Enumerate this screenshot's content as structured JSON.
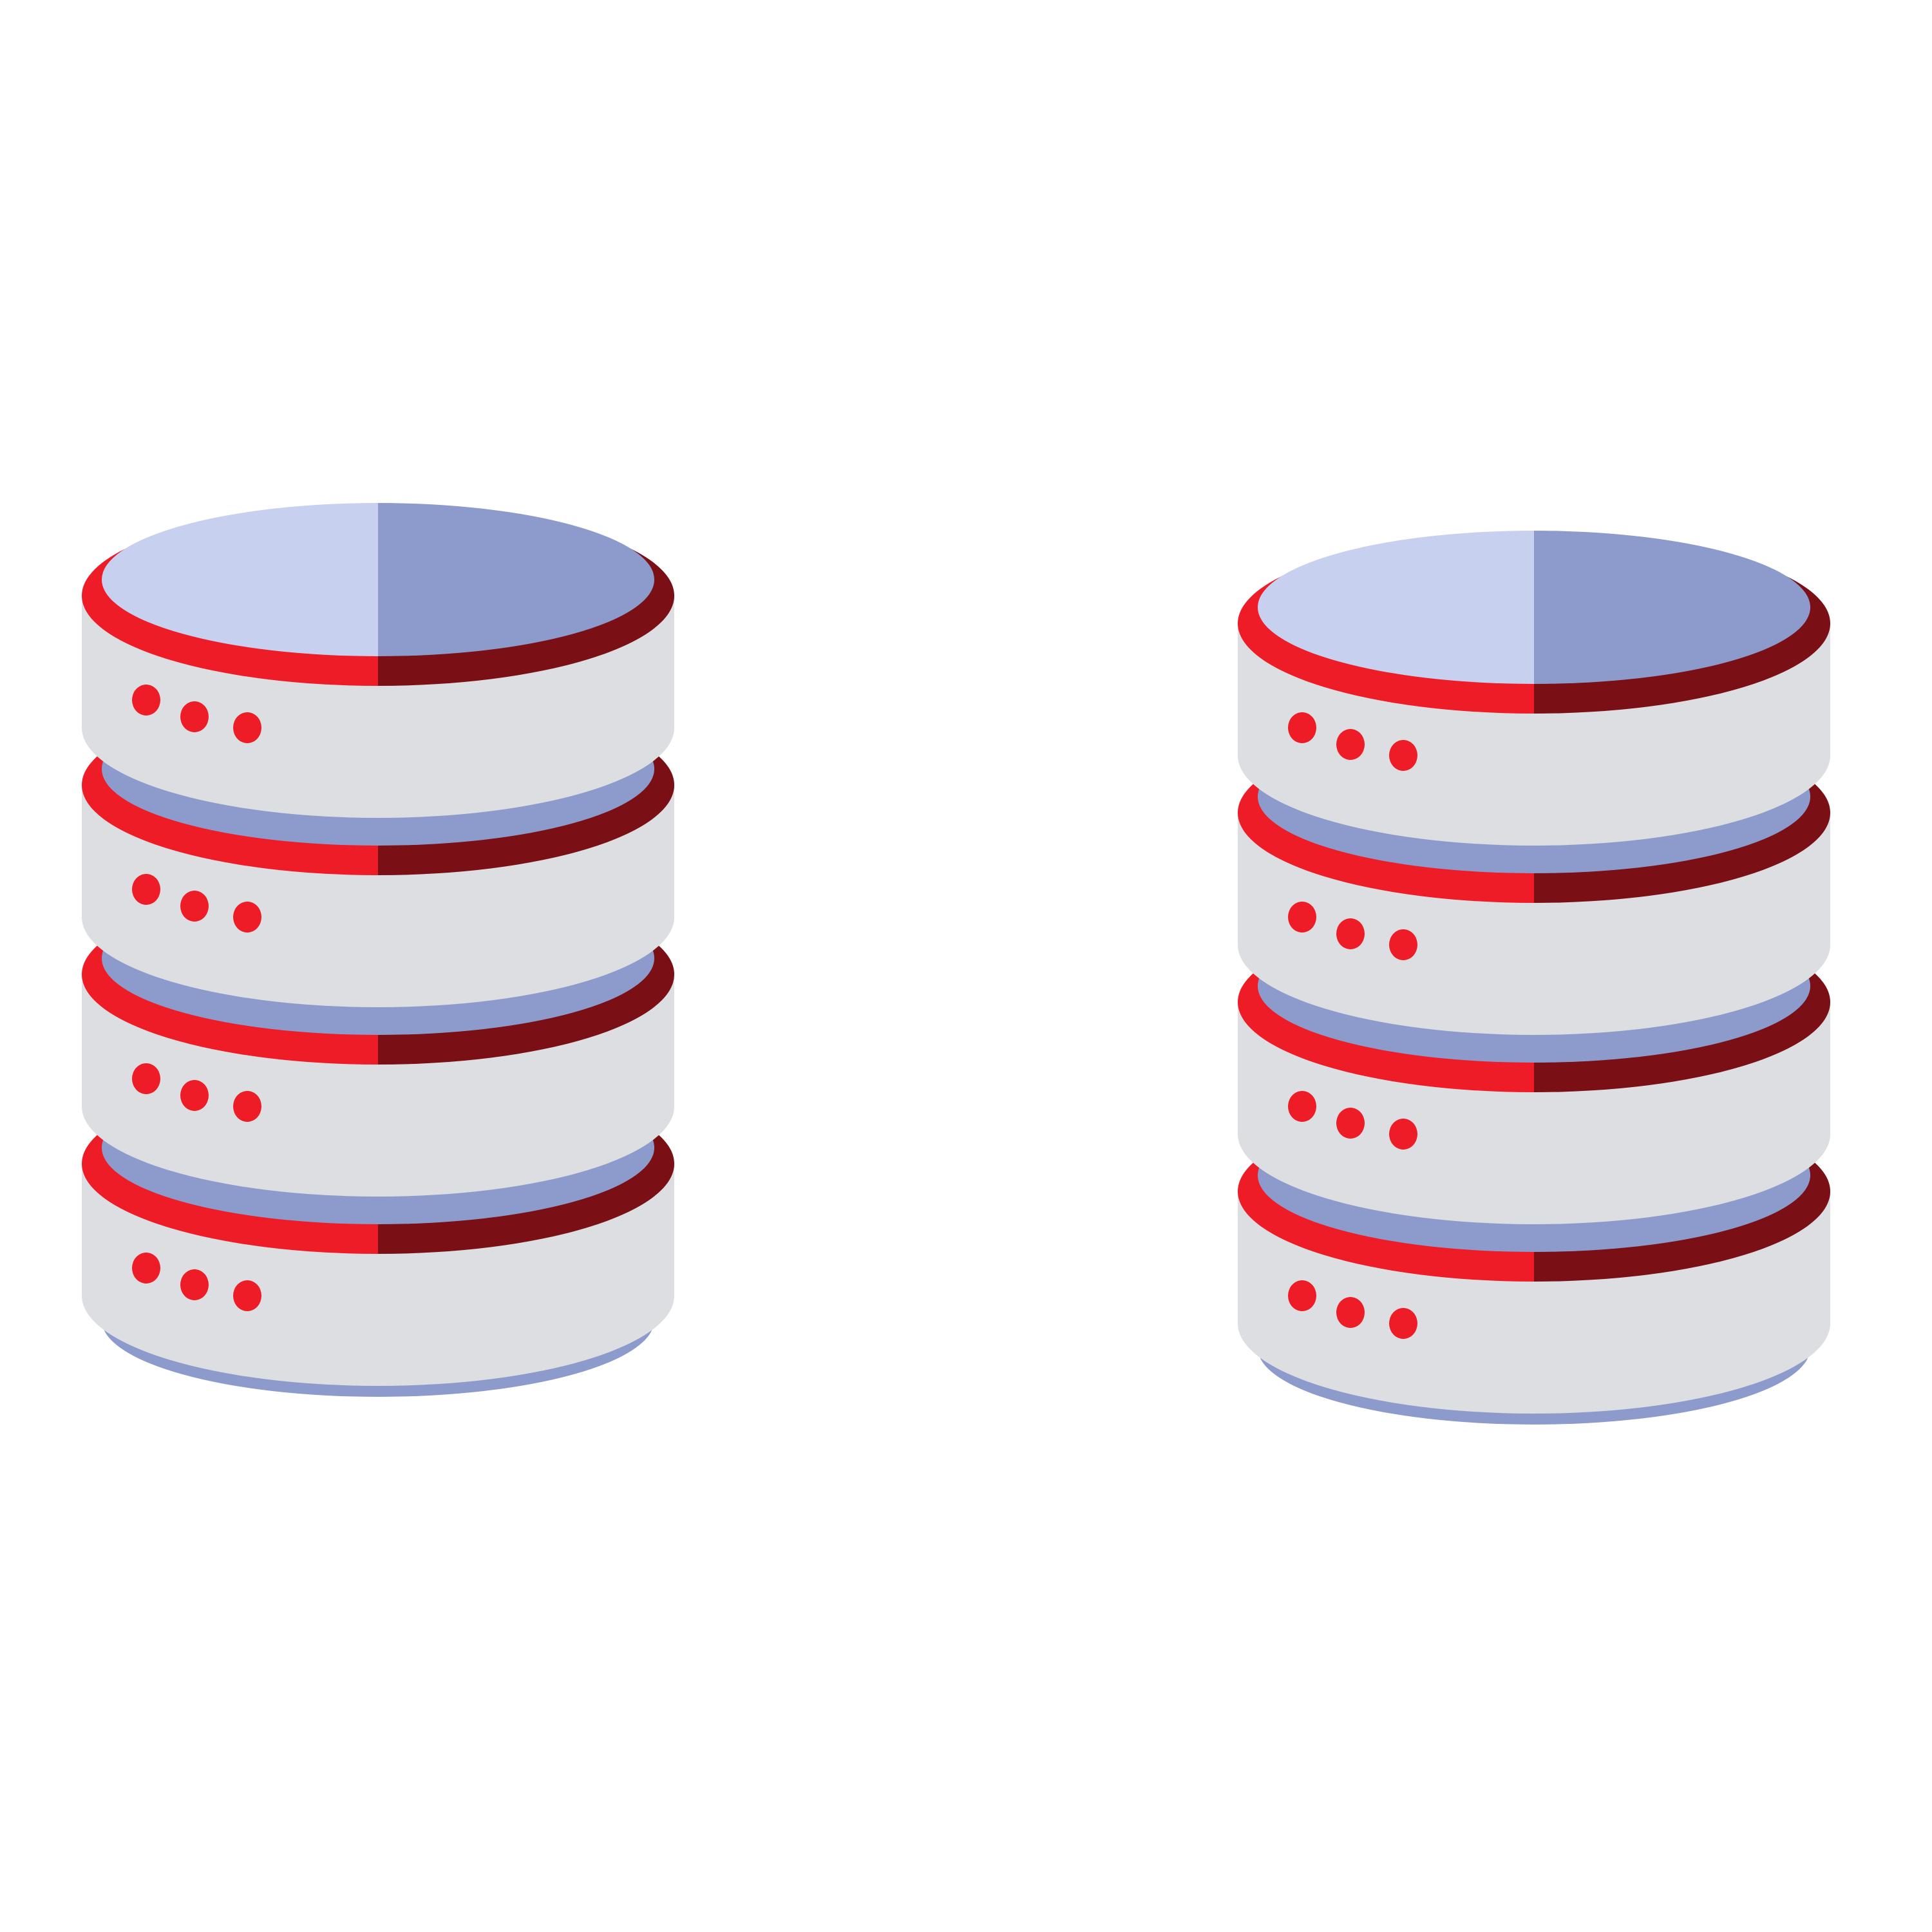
{
  "scene": {
    "background": "#ffffff",
    "subject": "database-icons"
  },
  "palette": {
    "body": "#dcdee1",
    "top_light": "#c7d0ee",
    "top_dark": "#8c9bcc",
    "rim_red": "#ed1c26",
    "rim_dark": "#7a0f15",
    "lower_band": "#8c9bcc",
    "led": "#ed1c26"
  },
  "icons": [
    {
      "name": "database-icon-left",
      "icon": "database-icon",
      "disk_count": 4,
      "leds_per_disk": 3
    },
    {
      "name": "database-icon-right",
      "icon": "database-icon",
      "disk_count": 4,
      "leds_per_disk": 3
    }
  ]
}
